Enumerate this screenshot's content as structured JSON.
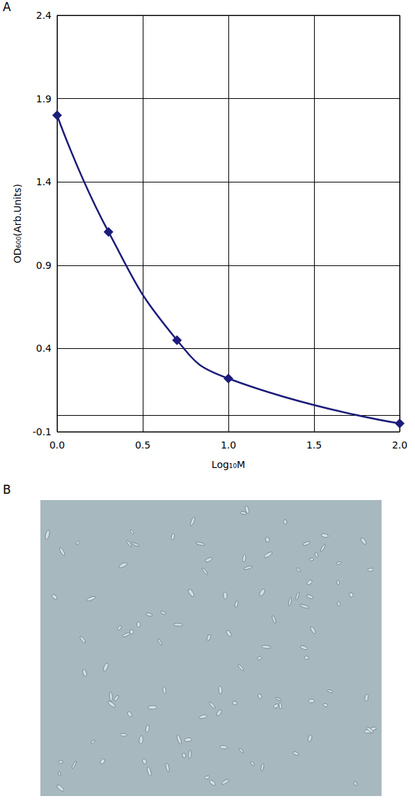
{
  "panel_labels": [
    "A",
    "B"
  ],
  "chart_data": {
    "type": "line",
    "x": [
      0.0,
      0.3,
      0.7,
      1.0,
      2.0
    ],
    "values": [
      1.8,
      1.1,
      0.45,
      0.22,
      -0.05
    ],
    "color": "#1c1c7a",
    "marker": "diamond",
    "line_style": "solid",
    "x_label": "Log₁₀M",
    "y_label": "OD₆₀₀(Arb.Units)",
    "xlim": [
      0,
      2
    ],
    "xticks": [
      {
        "value": 0,
        "label": "0.0"
      },
      0.5,
      {
        "value": 1,
        "label": "1.0"
      },
      1.5,
      {
        "value": 2,
        "label": "2.0"
      }
    ],
    "ylim": [
      -0.1,
      2.4
    ],
    "yticks": [
      -0.1,
      0.4,
      0.9,
      1.4,
      1.9,
      2.4
    ],
    "grid": true
  }
}
